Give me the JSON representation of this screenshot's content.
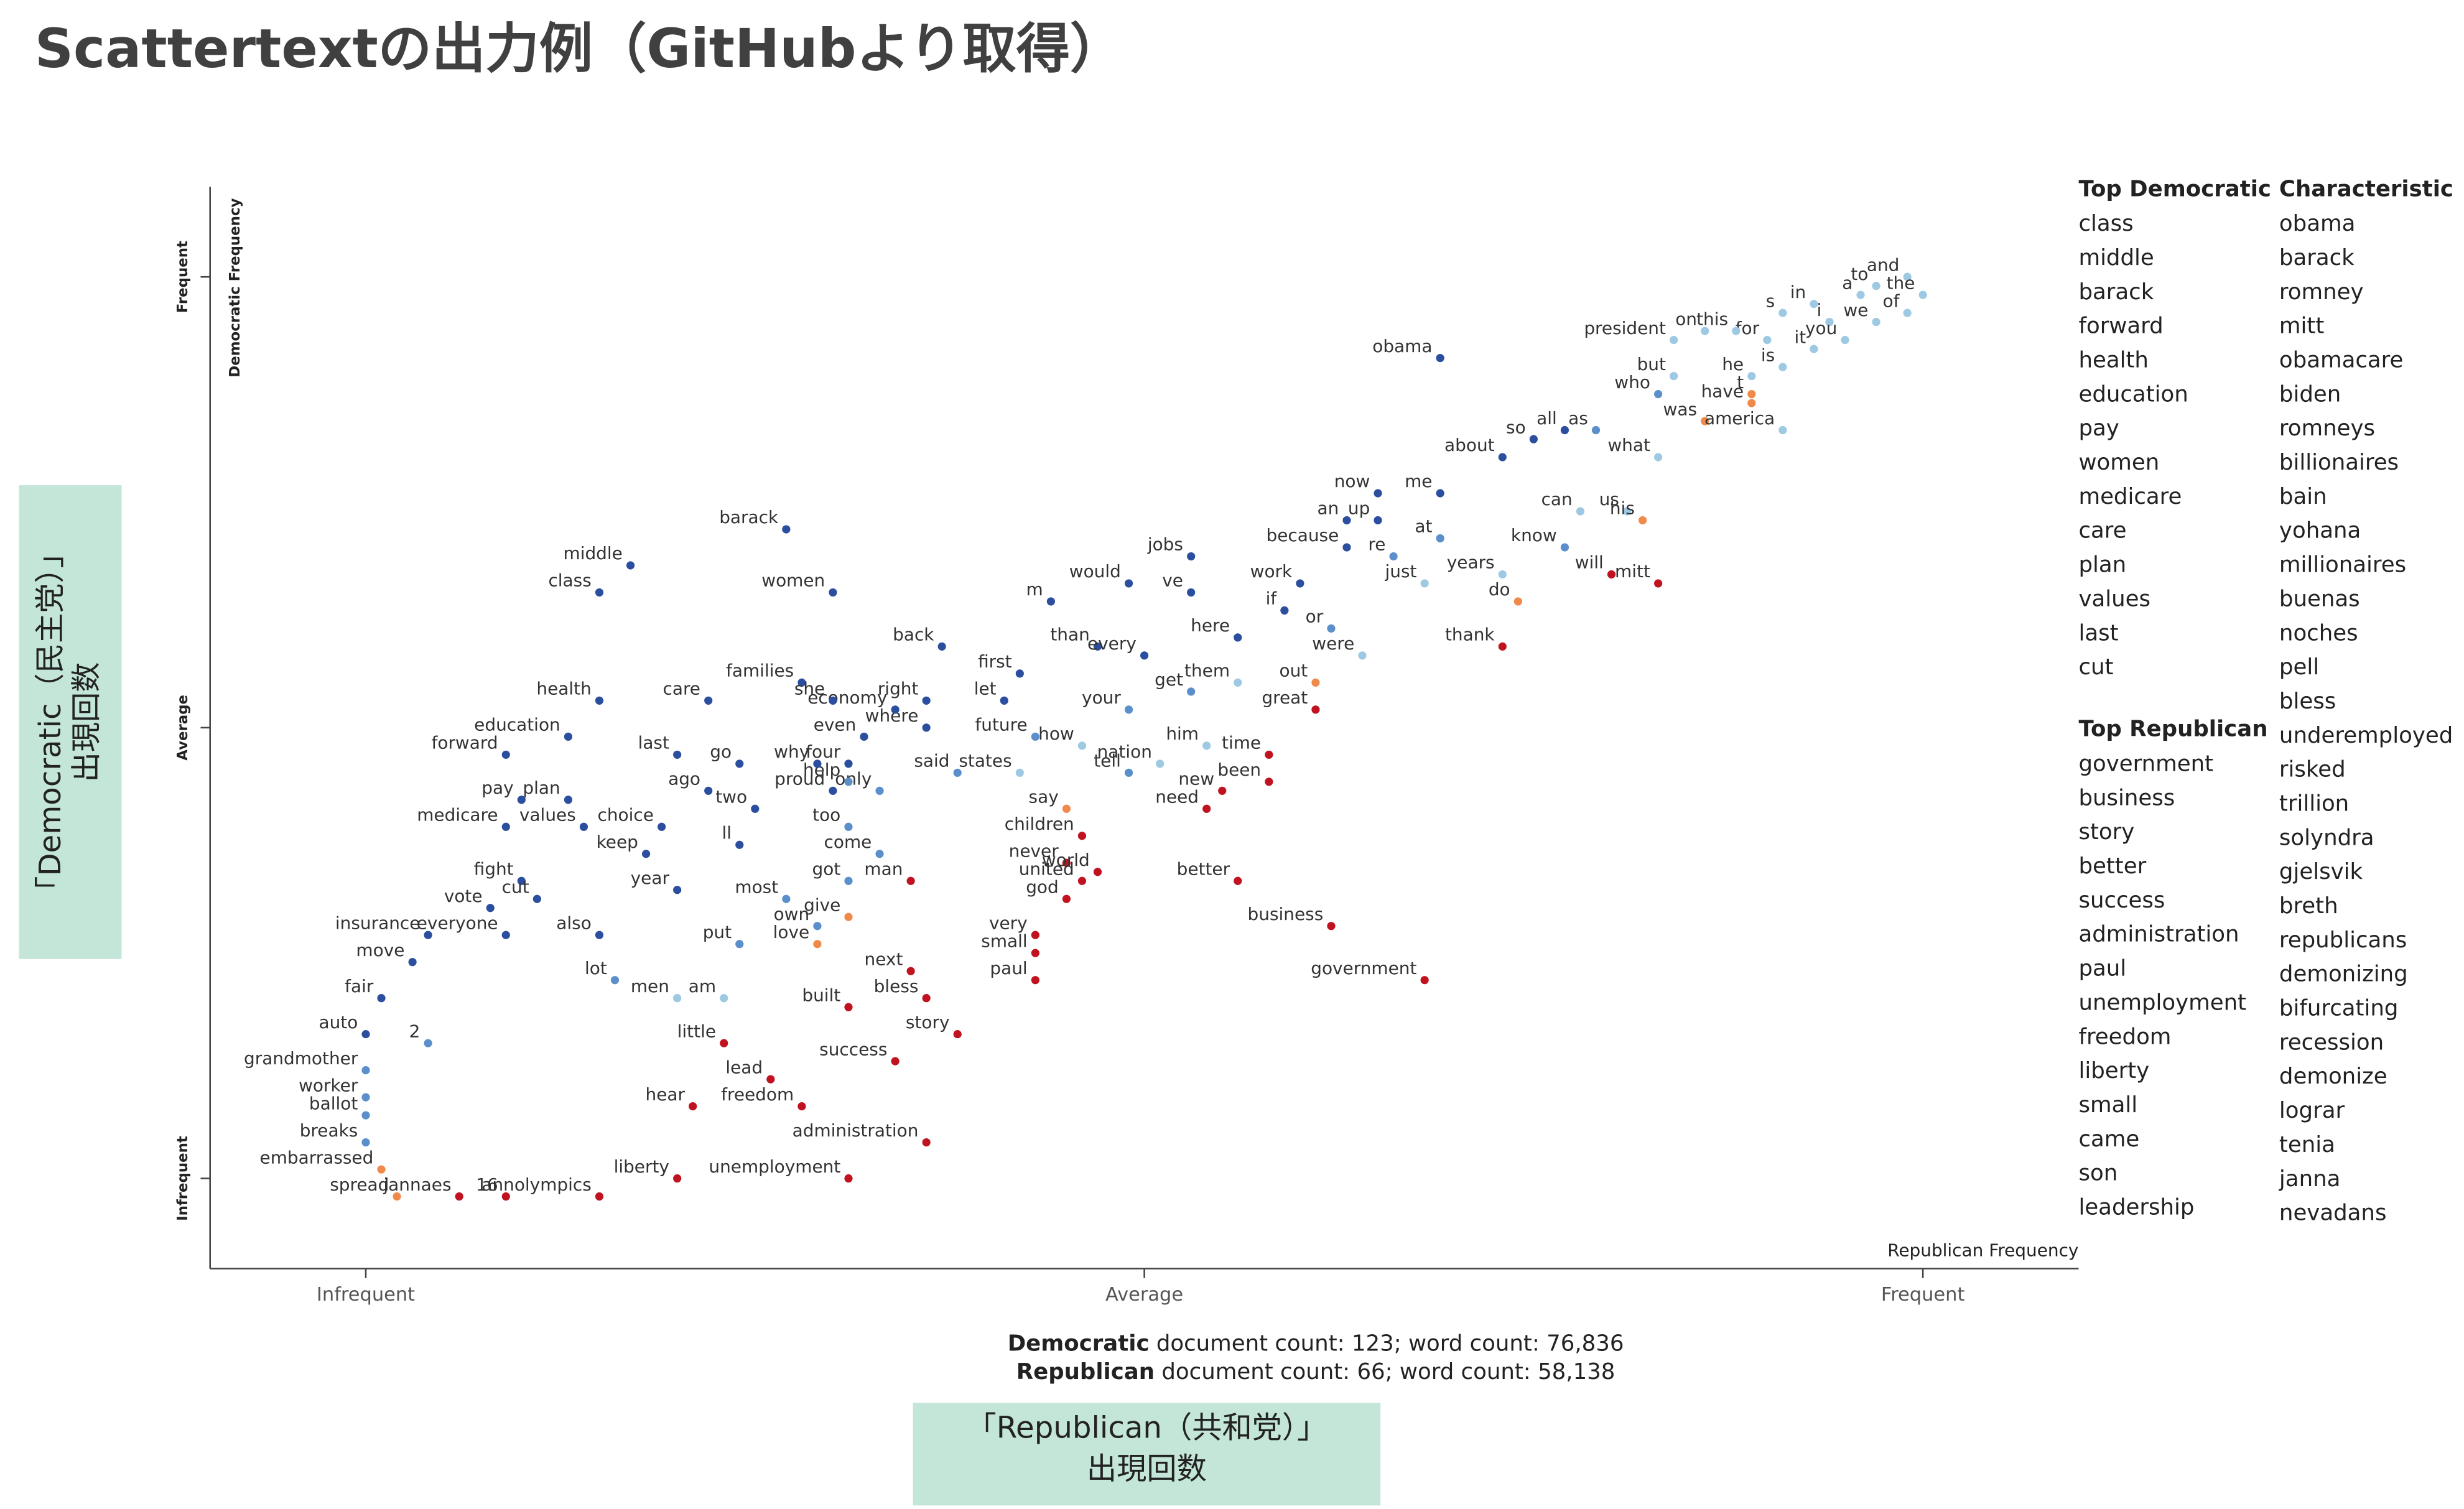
{
  "title": "Scattertextの出力例（GitHubより取得）",
  "y_box": [
    "「Democratic（民主党）」",
    "出現回数"
  ],
  "x_box": [
    "「Republican（共和党）」",
    "出現回数"
  ],
  "chart_data": {
    "type": "scatter",
    "x_axis_label": "Republican Frequency",
    "y_axis_label": "Democratic Frequency",
    "xlim": [
      -0.1,
      1.1
    ],
    "ylim": [
      -0.1,
      1.1
    ],
    "xticks": [
      {
        "value": 0,
        "label": "Infrequent"
      },
      {
        "value": 0.5,
        "label": "Average"
      },
      {
        "value": 1,
        "label": "Frequent"
      }
    ],
    "yticks": [
      {
        "value": 0,
        "label": "Infrequent"
      },
      {
        "value": 0.5,
        "label": "Average"
      },
      {
        "value": 1,
        "label": "Frequent"
      }
    ],
    "grid": false,
    "labels": [
      "and",
      "the",
      "to",
      "a",
      "of",
      "we",
      "in",
      "s",
      "i",
      "it",
      "you",
      "for",
      "is",
      "he",
      "this",
      "on",
      "t",
      "have",
      "president",
      "but",
      "who",
      "was",
      "what",
      "america",
      "obama",
      "about",
      "so",
      "all",
      "as",
      "me",
      "now",
      "an",
      "up",
      "because",
      "can",
      "us",
      "know",
      "his",
      "will",
      "mitt",
      "re",
      "at",
      "just",
      "years",
      "do",
      "thank",
      "work",
      "if",
      "or",
      "were",
      "out",
      "here",
      "jobs",
      "ve",
      "would",
      "m",
      "than",
      "every",
      "them",
      "get",
      "great",
      "first",
      "let",
      "your",
      "him",
      "time",
      "nation",
      "been",
      "new",
      "how",
      "tell",
      "future",
      "states",
      "said",
      "back",
      "right",
      "where",
      "economy",
      "even",
      "four",
      "only",
      "help",
      "say",
      "need",
      "children",
      "never",
      "united",
      "world",
      "god",
      "better",
      "business",
      "government",
      "very",
      "small",
      "paul",
      "come",
      "man",
      "got",
      "give",
      "next",
      "bless",
      "built",
      "story",
      "success",
      "little",
      "lead",
      "hear",
      "freedom",
      "administration",
      "unemployment",
      "liberty",
      "women",
      "barack",
      "middle",
      "class",
      "families",
      "she",
      "care",
      "health",
      "education",
      "forward",
      "last",
      "go",
      "why",
      "proud",
      "pay",
      "plan",
      "ago",
      "two",
      "medicare",
      "values",
      "choice",
      "keep",
      "too",
      "ll",
      "fight",
      "year",
      "most",
      "vote",
      "cut",
      "own",
      "also",
      "put",
      "love",
      "insurance",
      "everyone",
      "move",
      "lot",
      "men",
      "am",
      "fair",
      "auto",
      "2",
      "grandmother",
      "worker",
      "ballot",
      "breaks",
      "embarrassed",
      "spread",
      "jannaes",
      "16",
      "annolympics"
    ],
    "x": [
      0.99,
      1.0,
      0.97,
      0.96,
      0.99,
      0.97,
      0.93,
      0.91,
      0.94,
      0.93,
      0.95,
      0.9,
      0.91,
      0.89,
      0.88,
      0.86,
      0.89,
      0.89,
      0.84,
      0.84,
      0.83,
      0.86,
      0.83,
      0.91,
      0.69,
      0.73,
      0.75,
      0.77,
      0.79,
      0.69,
      0.65,
      0.63,
      0.65,
      0.63,
      0.78,
      0.81,
      0.77,
      0.82,
      0.8,
      0.83,
      0.66,
      0.69,
      0.68,
      0.73,
      0.74,
      0.73,
      0.6,
      0.59,
      0.62,
      0.64,
      0.61,
      0.56,
      0.53,
      0.53,
      0.49,
      0.44,
      0.47,
      0.5,
      0.56,
      0.53,
      0.61,
      0.42,
      0.41,
      0.49,
      0.54,
      0.58,
      0.51,
      0.58,
      0.55,
      0.46,
      0.49,
      0.43,
      0.42,
      0.38,
      0.37,
      0.36,
      0.36,
      0.34,
      0.32,
      0.31,
      0.33,
      0.31,
      0.45,
      0.54,
      0.46,
      0.45,
      0.46,
      0.47,
      0.45,
      0.56,
      0.62,
      0.68,
      0.43,
      0.43,
      0.43,
      0.33,
      0.35,
      0.31,
      0.31,
      0.35,
      0.36,
      0.31,
      0.38,
      0.34,
      0.23,
      0.26,
      0.21,
      0.28,
      0.36,
      0.31,
      0.2,
      0.3,
      0.27,
      0.17,
      0.15,
      0.28,
      0.3,
      0.22,
      0.15,
      0.13,
      0.09,
      0.2,
      0.24,
      0.29,
      0.3,
      0.1,
      0.13,
      0.22,
      0.25,
      0.09,
      0.14,
      0.19,
      0.18,
      0.31,
      0.24,
      0.1,
      0.2,
      0.27,
      0.08,
      0.11,
      0.29,
      0.15,
      0.24,
      0.29,
      0.04,
      0.09,
      0.03,
      0.16,
      0.2,
      0.23,
      0.01,
      0.0,
      0.04,
      0.0,
      0.0,
      0.0,
      0.0,
      0.01,
      0.02,
      0.06,
      0.09,
      0.15
    ],
    "y": [
      1.0,
      0.98,
      0.99,
      0.98,
      0.96,
      0.95,
      0.97,
      0.96,
      0.95,
      0.92,
      0.93,
      0.93,
      0.9,
      0.89,
      0.94,
      0.94,
      0.87,
      0.86,
      0.93,
      0.89,
      0.87,
      0.84,
      0.8,
      0.83,
      0.91,
      0.8,
      0.82,
      0.83,
      0.83,
      0.76,
      0.76,
      0.73,
      0.73,
      0.7,
      0.74,
      0.74,
      0.7,
      0.73,
      0.67,
      0.66,
      0.69,
      0.71,
      0.66,
      0.67,
      0.64,
      0.59,
      0.66,
      0.63,
      0.61,
      0.58,
      0.55,
      0.6,
      0.69,
      0.65,
      0.66,
      0.64,
      0.59,
      0.58,
      0.55,
      0.54,
      0.52,
      0.56,
      0.53,
      0.52,
      0.48,
      0.47,
      0.46,
      0.44,
      0.43,
      0.48,
      0.45,
      0.49,
      0.45,
      0.45,
      0.59,
      0.53,
      0.5,
      0.52,
      0.49,
      0.46,
      0.43,
      0.44,
      0.41,
      0.41,
      0.38,
      0.35,
      0.33,
      0.34,
      0.31,
      0.33,
      0.28,
      0.22,
      0.27,
      0.25,
      0.22,
      0.36,
      0.33,
      0.33,
      0.29,
      0.23,
      0.2,
      0.19,
      0.16,
      0.13,
      0.15,
      0.11,
      0.08,
      0.08,
      0.04,
      0.0,
      0.0,
      0.65,
      0.72,
      0.68,
      0.65,
      0.55,
      0.53,
      0.53,
      0.53,
      0.49,
      0.47,
      0.47,
      0.46,
      0.46,
      0.43,
      0.42,
      0.42,
      0.43,
      0.41,
      0.39,
      0.39,
      0.39,
      0.36,
      0.39,
      0.37,
      0.33,
      0.32,
      0.31,
      0.3,
      0.31,
      0.28,
      0.27,
      0.26,
      0.26,
      0.27,
      0.27,
      0.24,
      0.22,
      0.2,
      0.2,
      0.2,
      0.16,
      0.15,
      0.12,
      0.09,
      0.07,
      0.04,
      0.01,
      -0.02,
      -0.02,
      -0.02,
      -0.02
    ],
    "colors": [
      "#9ec9e2",
      "#9ec9e2",
      "#9ec9e2",
      "#9ec9e2",
      "#9ec9e2",
      "#9ec9e2",
      "#9ec9e2",
      "#9ec9e2",
      "#9ec9e2",
      "#9ec9e2",
      "#9ec9e2",
      "#9ec9e2",
      "#9ec9e2",
      "#9ec9e2",
      "#9ec9e2",
      "#9ec9e2",
      "#f08a4b",
      "#f08a4b",
      "#9ec9e2",
      "#9ec9e2",
      "#5a8fcc",
      "#f08a4b",
      "#9ec9e2",
      "#9ec9e2",
      "#2b4f9e",
      "#2b4f9e",
      "#2b4f9e",
      "#2b4f9e",
      "#5a8fcc",
      "#2b4f9e",
      "#2b4f9e",
      "#2b4f9e",
      "#2b4f9e",
      "#2b4f9e",
      "#9ec9e2",
      "#9ec9e2",
      "#5a8fcc",
      "#f08a4b",
      "#c1121f",
      "#c1121f",
      "#5a8fcc",
      "#5a8fcc",
      "#9ec9e2",
      "#9ec9e2",
      "#f08a4b",
      "#c1121f",
      "#2b4f9e",
      "#2b4f9e",
      "#5a8fcc",
      "#9ec9e2",
      "#f08a4b",
      "#2b4f9e",
      "#2b4f9e",
      "#2b4f9e",
      "#2b4f9e",
      "#2b4f9e",
      "#2b4f9e",
      "#2b4f9e",
      "#9ec9e2",
      "#5a8fcc",
      "#c1121f",
      "#2b4f9e",
      "#2b4f9e",
      "#5a8fcc",
      "#9ec9e2",
      "#c1121f",
      "#9ec9e2",
      "#c1121f",
      "#c1121f",
      "#9ec9e2",
      "#5a8fcc",
      "#5a8fcc",
      "#9ec9e2",
      "#5a8fcc",
      "#2b4f9e",
      "#2b4f9e",
      "#2b4f9e",
      "#2b4f9e",
      "#2b4f9e",
      "#2b4f9e",
      "#5a8fcc",
      "#5a8fcc",
      "#f08a4b",
      "#c1121f",
      "#c1121f",
      "#c1121f",
      "#c1121f",
      "#c1121f",
      "#c1121f",
      "#c1121f",
      "#c1121f",
      "#c1121f",
      "#c1121f",
      "#c1121f",
      "#c1121f",
      "#5a8fcc",
      "#c1121f",
      "#5a8fcc",
      "#f08a4b",
      "#c1121f",
      "#c1121f",
      "#c1121f",
      "#c1121f",
      "#c1121f",
      "#c1121f",
      "#c1121f",
      "#c1121f",
      "#c1121f",
      "#c1121f",
      "#c1121f",
      "#c1121f",
      "#2b4f9e",
      "#2b4f9e",
      "#2b4f9e",
      "#2b4f9e",
      "#2b4f9e",
      "#2b4f9e",
      "#2b4f9e",
      "#2b4f9e",
      "#2b4f9e",
      "#2b4f9e",
      "#2b4f9e",
      "#2b4f9e",
      "#2b4f9e",
      "#2b4f9e",
      "#2b4f9e",
      "#2b4f9e",
      "#2b4f9e",
      "#2b4f9e",
      "#2b4f9e",
      "#2b4f9e",
      "#2b4f9e",
      "#2b4f9e",
      "#5a8fcc",
      "#2b4f9e",
      "#2b4f9e",
      "#2b4f9e",
      "#5a8fcc",
      "#2b4f9e",
      "#2b4f9e",
      "#5a8fcc",
      "#2b4f9e",
      "#5a8fcc",
      "#f08a4b",
      "#2b4f9e",
      "#2b4f9e",
      "#2b4f9e",
      "#5a8fcc",
      "#9ec9e2",
      "#9ec9e2",
      "#2b4f9e",
      "#2b4f9e",
      "#5a8fcc",
      "#5a8fcc",
      "#5a8fcc",
      "#5a8fcc",
      "#5a8fcc",
      "#f08a4b",
      "#f08a4b",
      "#c1121f",
      "#c1121f",
      "#c1121f"
    ]
  },
  "counts": [
    {
      "party": "Democratic",
      "text": "document count: 123; word count: 76,836"
    },
    {
      "party": "Republican",
      "text": "document count: 66; word count: 58,138"
    }
  ],
  "lists": {
    "top_democratic": {
      "title": "Top Democratic",
      "items": [
        "class",
        "middle",
        "barack",
        "forward",
        "health",
        "education",
        "pay",
        "women",
        "medicare",
        "care",
        "plan",
        "values",
        "last",
        "cut"
      ]
    },
    "top_republican": {
      "title": "Top Republican",
      "items": [
        "government",
        "business",
        "story",
        "better",
        "success",
        "administration",
        "paul",
        "unemployment",
        "freedom",
        "liberty",
        "small",
        "came",
        "son",
        "leadership"
      ]
    },
    "characteristic": {
      "title": "Characteristic",
      "items": [
        "obama",
        "barack",
        "romney",
        "mitt",
        "obamacare",
        "biden",
        "romneys",
        "billionaires",
        "bain",
        "yohana",
        "millionaires",
        "buenas",
        "noches",
        "pell",
        "bless",
        "underemployed",
        "risked",
        "trillion",
        "solyndra",
        "gjelsvik",
        "breth",
        "republicans",
        "demonizing",
        "bifurcating",
        "recession",
        "demonize",
        "lograr",
        "tenia",
        "janna",
        "nevadans"
      ]
    }
  }
}
